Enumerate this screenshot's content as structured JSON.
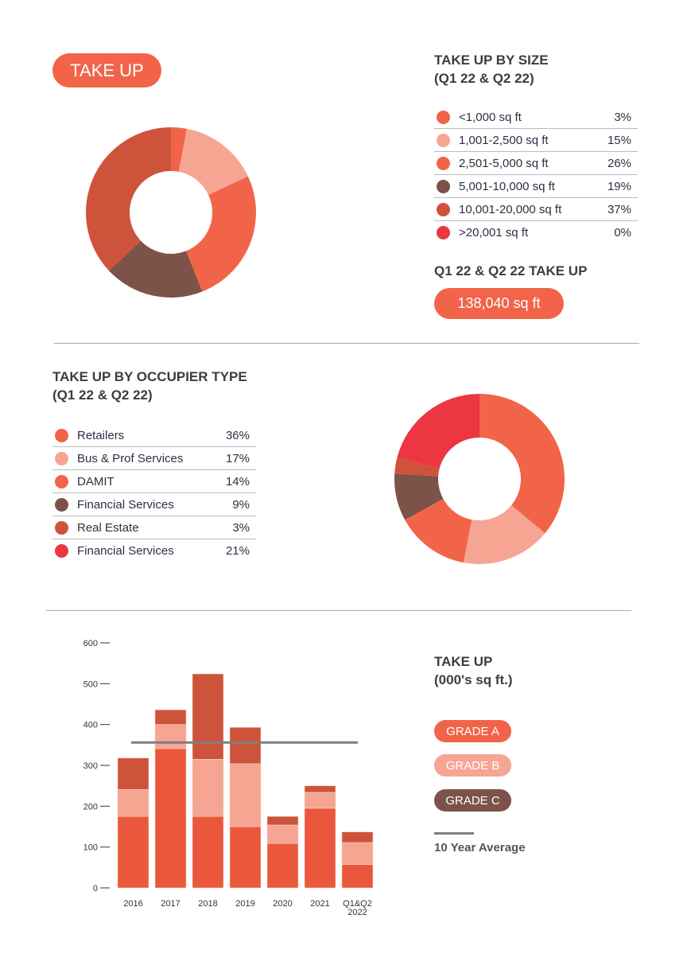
{
  "take_up_label": "TAKE UP",
  "colors": {
    "orange": "#f26449",
    "light": "#f6a593",
    "brown": "#7d5249",
    "rust": "#cd533a",
    "red": "#ec3642",
    "grey": "#7f7f7f"
  },
  "by_size": {
    "title1": "TAKE UP BY SIZE",
    "title2": "(Q1 22 & Q2 22)",
    "items": [
      {
        "label": "<1,000 sq ft",
        "value": "3%",
        "pct": 3,
        "color": "#f26449"
      },
      {
        "label": "1,001-2,500 sq ft",
        "value": "15%",
        "pct": 15,
        "color": "#f6a593"
      },
      {
        "label": "2,501-5,000 sq ft",
        "value": "26%",
        "pct": 26,
        "color": "#f26449"
      },
      {
        "label": "5,001-10,000 sq ft",
        "value": "19%",
        "pct": 19,
        "color": "#7d5249"
      },
      {
        "label": "10,001-20,000 sq ft",
        "value": "37%",
        "pct": 37,
        "color": "#cd533a"
      },
      {
        "label": ">20,001 sq ft",
        "value": "0%",
        "pct": 0,
        "color": "#ec3642"
      }
    ],
    "total_title": "Q1 22 & Q2 22 TAKE UP",
    "total_value": "138,040 sq ft"
  },
  "by_occupier": {
    "title1": "TAKE UP BY OCCUPIER TYPE",
    "title2": "(Q1 22 & Q2 22)",
    "items": [
      {
        "label": "Retailers",
        "value": "36%",
        "pct": 36,
        "color": "#f26449"
      },
      {
        "label": "Bus & Prof Services",
        "value": "17%",
        "pct": 17,
        "color": "#f6a593"
      },
      {
        "label": "DAMIT",
        "value": "14%",
        "pct": 14,
        "color": "#f26449"
      },
      {
        "label": "Financial Services",
        "value": "9%",
        "pct": 9,
        "color": "#7d5249"
      },
      {
        "label": "Real Estate",
        "value": "3%",
        "pct": 3,
        "color": "#cd533a"
      },
      {
        "label": "Financial Services",
        "value": "21%",
        "pct": 21,
        "color": "#ec3642"
      }
    ]
  },
  "chart_data": {
    "type": "bar",
    "stacked": true,
    "title": "TAKE UP",
    "subtitle": "(000's sq ft.)",
    "categories": [
      "2016",
      "2017",
      "2018",
      "2019",
      "2020",
      "2021",
      "Q1&Q2 2022"
    ],
    "series": [
      {
        "name": "GRADE A",
        "color": "#ea573b",
        "values": [
          175,
          341,
          175,
          150,
          109,
          195,
          57
        ]
      },
      {
        "name": "GRADE B",
        "color": "#f6a593",
        "values": [
          66,
          59,
          140,
          154,
          45,
          39,
          54
        ]
      },
      {
        "name": "GRADE C",
        "color": "#cd533a",
        "values": [
          77,
          36,
          209,
          89,
          21,
          16,
          26
        ]
      }
    ],
    "legend_colors": [
      "#f26449",
      "#f6a593",
      "#7d5249"
    ],
    "average": {
      "name": "10 Year Average",
      "value": 356
    },
    "ylim": [
      0,
      600
    ],
    "yticks": [
      "0",
      "100",
      "200",
      "300",
      "400",
      "500",
      "600"
    ],
    "legend": "right"
  }
}
